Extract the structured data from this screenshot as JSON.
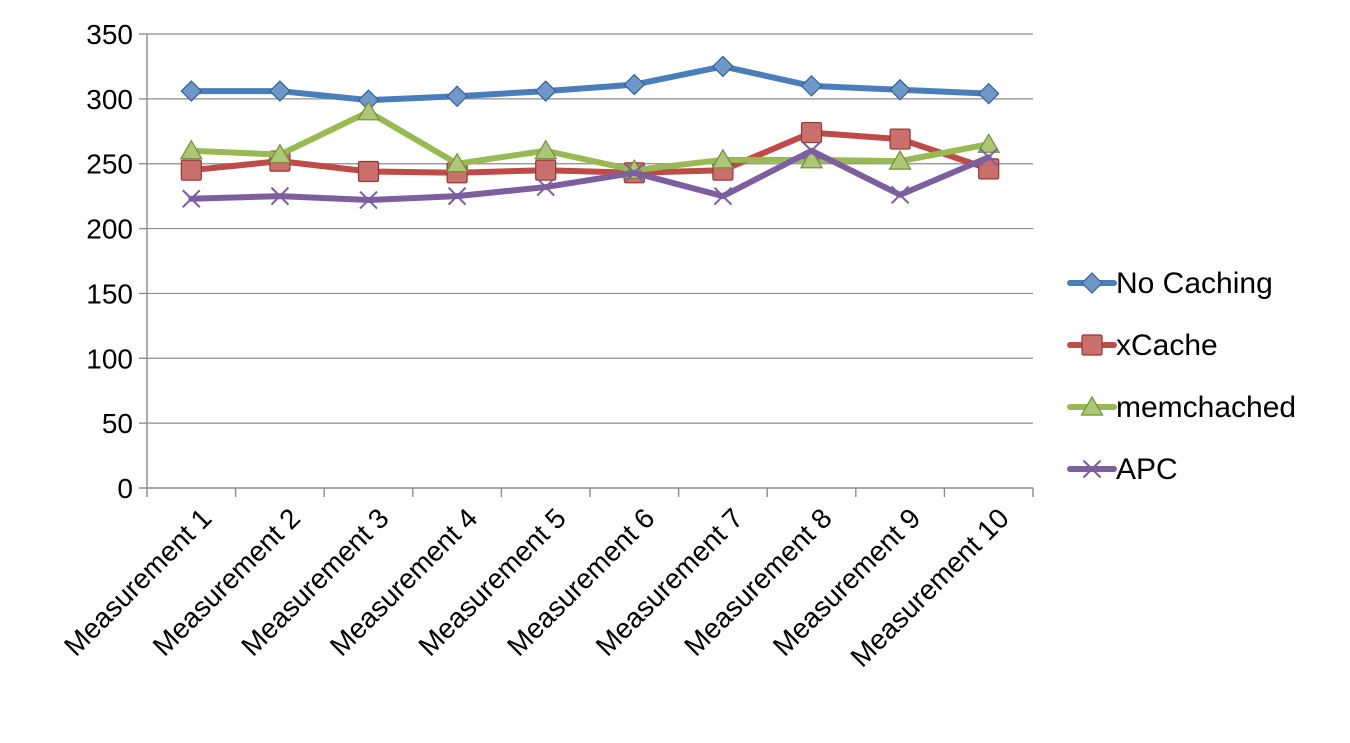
{
  "chart_data": {
    "type": "line",
    "categories": [
      "Measurement 1",
      "Measurement 2",
      "Measurement 3",
      "Measurement 4",
      "Measurement 5",
      "Measurement 6",
      "Measurement 7",
      "Measurement 8",
      "Measurement 9",
      "Measurement 10"
    ],
    "series": [
      {
        "name": "No Caching",
        "color": "#4a7ebb",
        "marker": "diamond",
        "values": [
          306,
          306,
          299,
          302,
          306,
          311,
          325,
          310,
          307,
          304
        ]
      },
      {
        "name": "xCache",
        "color": "#be4b48",
        "marker": "square",
        "values": [
          245,
          252,
          244,
          243,
          245,
          243,
          245,
          274,
          269,
          246
        ]
      },
      {
        "name": "memchached",
        "color": "#98b954",
        "marker": "triangle",
        "values": [
          260,
          257,
          290,
          250,
          260,
          245,
          253,
          253,
          252,
          265
        ]
      },
      {
        "name": "APC",
        "color": "#7d5fa0",
        "marker": "x",
        "values": [
          223,
          225,
          222,
          225,
          232,
          243,
          225,
          260,
          226,
          255
        ]
      }
    ],
    "y_ticks": [
      0,
      50,
      100,
      150,
      200,
      250,
      300,
      350
    ],
    "ylim": [
      0,
      350
    ],
    "grid": true,
    "legend_position": "right",
    "title": "",
    "xlabel": "",
    "ylabel": ""
  }
}
